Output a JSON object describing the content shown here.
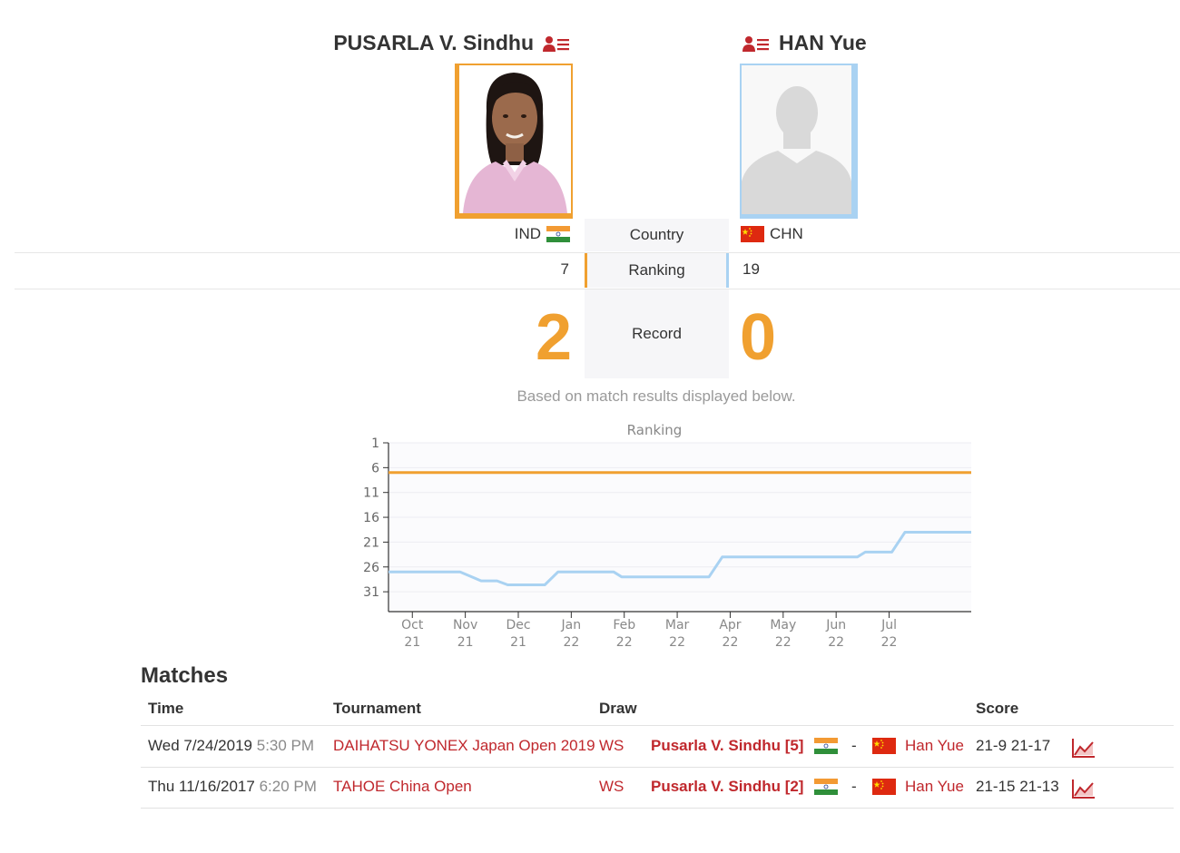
{
  "player1": {
    "name": "PUSARLA V. Sindhu",
    "country": "IND",
    "ranking": "7",
    "record": "2",
    "color": "#f0a030"
  },
  "player2": {
    "name": "HAN Yue",
    "country": "CHN",
    "ranking": "19",
    "record": "0",
    "color": "#a9d2f2"
  },
  "labels": {
    "country": "Country",
    "ranking": "Ranking",
    "record": "Record",
    "record_note": "Based on match results displayed below."
  },
  "chart_data": {
    "type": "line",
    "title": "Ranking",
    "y_ticks": [
      "1",
      "6",
      "11",
      "16",
      "21",
      "26",
      "31"
    ],
    "ylim": [
      1,
      35
    ],
    "y_inverted": true,
    "x_ticks": [
      [
        "Oct",
        "21"
      ],
      [
        "Nov",
        "21"
      ],
      [
        "Dec",
        "21"
      ],
      [
        "Jan",
        "22"
      ],
      [
        "Feb",
        "22"
      ],
      [
        "Mar",
        "22"
      ],
      [
        "Apr",
        "22"
      ],
      [
        "May",
        "22"
      ],
      [
        "Jun",
        "22"
      ],
      [
        "Jul",
        "22"
      ]
    ],
    "xlim": [
      -0.45,
      10.55
    ],
    "series": [
      {
        "color": "#f0a030",
        "points": [
          [
            -0.45,
            7
          ],
          [
            10.55,
            7
          ]
        ]
      },
      {
        "color": "#a9d2f2",
        "points": [
          [
            -0.45,
            27
          ],
          [
            0.9,
            27
          ],
          [
            1.3,
            28.8
          ],
          [
            1.6,
            28.8
          ],
          [
            1.8,
            29.6
          ],
          [
            2.5,
            29.6
          ],
          [
            2.75,
            27
          ],
          [
            3.8,
            27
          ],
          [
            3.95,
            28
          ],
          [
            5.6,
            28
          ],
          [
            5.85,
            24
          ],
          [
            8.4,
            24
          ],
          [
            8.55,
            23
          ],
          [
            9.05,
            23
          ],
          [
            9.3,
            19
          ],
          [
            10.55,
            19
          ]
        ]
      }
    ],
    "grid": true
  },
  "matches": {
    "title": "Matches",
    "headers": {
      "time": "Time",
      "tournament": "Tournament",
      "draw": "Draw",
      "score": "Score"
    },
    "rows": [
      {
        "date": "Wed 7/24/2019",
        "time": "5:30 PM",
        "tournament": "DAIHATSU YONEX Japan Open 2019",
        "draw": "WS",
        "player1": "Pusarla V. Sindhu [5]",
        "separator": "-",
        "player2": "Han Yue",
        "score": "21-9 21-17"
      },
      {
        "date": "Thu 11/16/2017",
        "time": "6:20 PM",
        "tournament": "TAHOE China Open",
        "draw": "WS",
        "player1": "Pusarla V. Sindhu [2]",
        "separator": "-",
        "player2": "Han Yue",
        "score": "21-15 21-13"
      }
    ]
  },
  "icons": {
    "profile": "profile-list-icon",
    "flag_ind": "india-flag-icon",
    "flag_chn": "china-flag-icon",
    "chart_link": "chart-link-icon"
  }
}
